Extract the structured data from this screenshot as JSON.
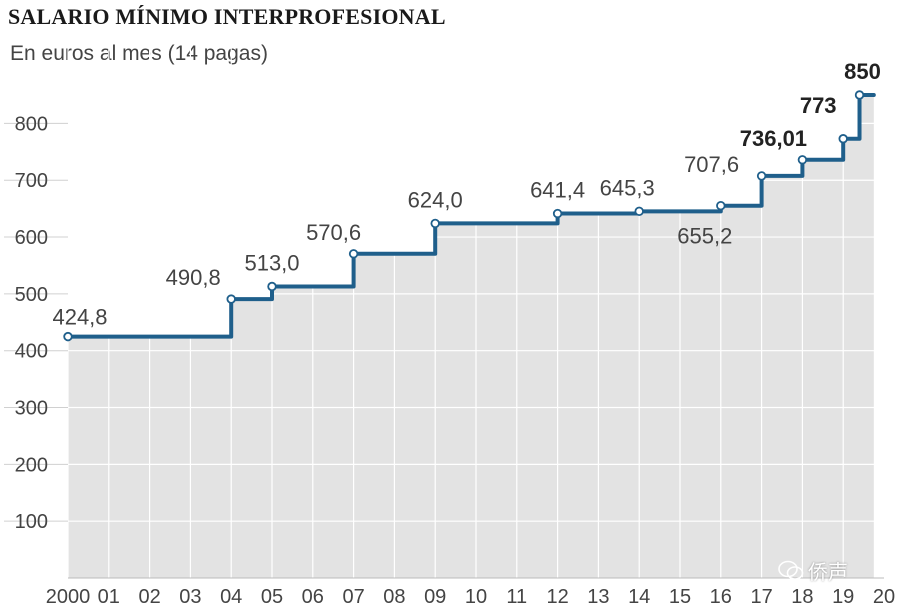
{
  "header": {
    "title": "SALARIO MÍNIMO INTERPROFESIONAL",
    "subtitle": "En euros al mes (14 pagas)"
  },
  "watermark": {
    "text": "侨声",
    "icon": "wechat-icon"
  },
  "colors": {
    "line": "#1f5f8b",
    "area": "#e3e3e3",
    "grid": "#ffffff",
    "text": "#444444",
    "marker_fill": "#ffffff"
  },
  "chart_data": {
    "type": "line",
    "step": true,
    "title": "SALARIO MÍNIMO INTERPROFESIONAL",
    "subtitle": "En euros al mes (14 pagas)",
    "xlabel": "",
    "ylabel": "",
    "xlim": [
      2000,
      2020
    ],
    "ylim": [
      0,
      850
    ],
    "x_ticks": [
      2000,
      2001,
      2002,
      2003,
      2004,
      2005,
      2006,
      2007,
      2008,
      2009,
      2010,
      2011,
      2012,
      2013,
      2014,
      2015,
      2016,
      2017,
      2018,
      2019,
      2020
    ],
    "x_tick_labels": [
      "2000",
      "01",
      "02",
      "03",
      "04",
      "05",
      "06",
      "07",
      "08",
      "09",
      "10",
      "11",
      "12",
      "13",
      "14",
      "15",
      "16",
      "17",
      "18",
      "19",
      "20"
    ],
    "y_ticks": [
      100,
      200,
      300,
      400,
      500,
      600,
      700,
      800
    ],
    "y_tick_labels": [
      "100",
      "200",
      "300",
      "400",
      "500",
      "600",
      "700",
      "800"
    ],
    "grid": true,
    "area_fill": true,
    "points": [
      {
        "x": 2000,
        "y": 424.8,
        "label": "424,8",
        "bold": false
      },
      {
        "x": 2004,
        "y": 490.8,
        "label": "490,8",
        "bold": false
      },
      {
        "x": 2005,
        "y": 513.0,
        "label": "513,0",
        "bold": false
      },
      {
        "x": 2007,
        "y": 570.6,
        "label": "570,6",
        "bold": false
      },
      {
        "x": 2009,
        "y": 624.0,
        "label": "624,0",
        "bold": false
      },
      {
        "x": 2012,
        "y": 641.4,
        "label": "641,4",
        "bold": false
      },
      {
        "x": 2014,
        "y": 645.3,
        "label": "645,3",
        "bold": false
      },
      {
        "x": 2016,
        "y": 655.2,
        "label": "655,2",
        "bold": false
      },
      {
        "x": 2017,
        "y": 707.6,
        "label": "707,6",
        "bold": false
      },
      {
        "x": 2018,
        "y": 736.01,
        "label": "736,01",
        "bold": true
      },
      {
        "x": 2019,
        "y": 773,
        "label": "773",
        "bold": true
      },
      {
        "x": 2019.4,
        "y": 850,
        "label": "850",
        "bold": true
      }
    ],
    "x_end": 2019.75
  }
}
